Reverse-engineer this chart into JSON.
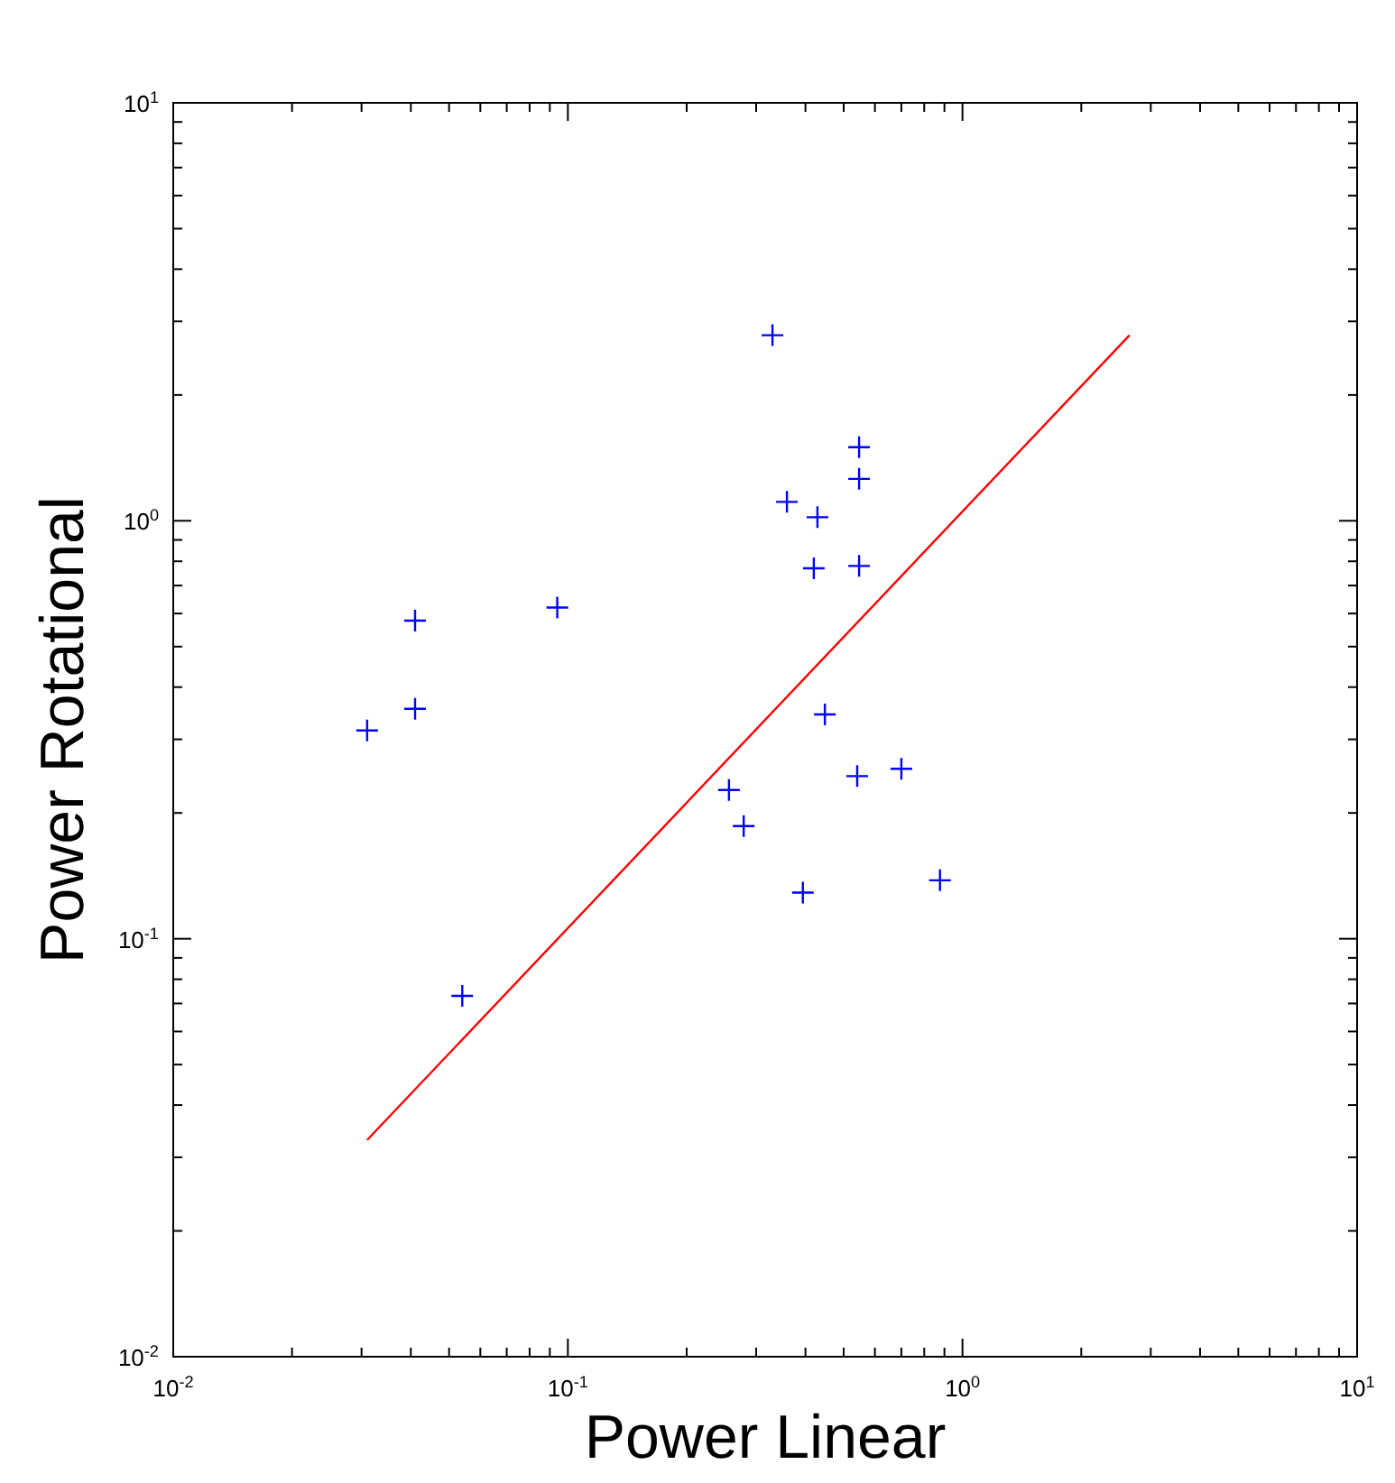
{
  "chart_data": {
    "type": "scatter",
    "xlabel": "Power Linear",
    "ylabel": "Power Rotational",
    "log": "xy",
    "marker": "cross",
    "grid": false,
    "xlim": [
      0.01,
      10
    ],
    "ylim": [
      0.01,
      10
    ],
    "xticks": [
      {
        "value": 0.01,
        "label": "10$^{-2}$"
      },
      {
        "value": 0.02,
        "label": null
      },
      {
        "value": 0.03,
        "label": null
      },
      {
        "value": 0.04,
        "label": null
      },
      {
        "value": 0.05,
        "label": null
      },
      {
        "value": 0.06,
        "label": null
      },
      {
        "value": 0.07,
        "label": null
      },
      {
        "value": 0.08,
        "label": null
      },
      {
        "value": 0.09,
        "label": null
      },
      {
        "value": 0.1,
        "label": "10$^{-1}$"
      },
      {
        "value": 0.2,
        "label": null
      },
      {
        "value": 0.3,
        "label": null
      },
      {
        "value": 0.4,
        "label": null
      },
      {
        "value": 0.5,
        "label": null
      },
      {
        "value": 0.6,
        "label": null
      },
      {
        "value": 0.7,
        "label": null
      },
      {
        "value": 0.8,
        "label": null
      },
      {
        "value": 0.9,
        "label": null
      },
      {
        "value": 1,
        "label": "10$^{0}$"
      },
      {
        "value": 2,
        "label": null
      },
      {
        "value": 3,
        "label": null
      },
      {
        "value": 4,
        "label": null
      },
      {
        "value": 5,
        "label": null
      },
      {
        "value": 6,
        "label": null
      },
      {
        "value": 7,
        "label": null
      },
      {
        "value": 8,
        "label": null
      },
      {
        "value": 9,
        "label": null
      },
      {
        "value": 10,
        "label": "10$^{1}$"
      }
    ],
    "yticks": [
      {
        "value": 0.01,
        "label": "10$^{-2}$"
      },
      {
        "value": 0.02,
        "label": null
      },
      {
        "value": 0.03,
        "label": null
      },
      {
        "value": 0.04,
        "label": null
      },
      {
        "value": 0.05,
        "label": null
      },
      {
        "value": 0.06,
        "label": null
      },
      {
        "value": 0.07,
        "label": null
      },
      {
        "value": 0.08,
        "label": null
      },
      {
        "value": 0.09,
        "label": null
      },
      {
        "value": 0.1,
        "label": "10$^{-1}$"
      },
      {
        "value": 0.2,
        "label": null
      },
      {
        "value": 0.3,
        "label": null
      },
      {
        "value": 0.4,
        "label": null
      },
      {
        "value": 0.5,
        "label": null
      },
      {
        "value": 0.6,
        "label": null
      },
      {
        "value": 0.7,
        "label": null
      },
      {
        "value": 0.8,
        "label": null
      },
      {
        "value": 0.9,
        "label": null
      },
      {
        "value": 1,
        "label": "10$^{0}$"
      },
      {
        "value": 2,
        "label": null
      },
      {
        "value": 3,
        "label": null
      },
      {
        "value": 4,
        "label": null
      },
      {
        "value": 5,
        "label": null
      },
      {
        "value": 6,
        "label": null
      },
      {
        "value": 7,
        "label": null
      },
      {
        "value": 8,
        "label": null
      },
      {
        "value": 9,
        "label": null
      },
      {
        "value": 10,
        "label": "10$^{1}$"
      }
    ],
    "series": [
      {
        "color": "#0000ff",
        "x": [
          0.031,
          0.054,
          0.041,
          0.041,
          0.094,
          0.33,
          0.547,
          0.547,
          0.359,
          0.429,
          0.42,
          0.547,
          0.448,
          0.256,
          0.279,
          0.541,
          0.7,
          0.394,
          0.877
        ],
        "values": [
          0.315,
          0.073,
          0.577,
          0.355,
          0.62,
          2.78,
          1.5,
          1.26,
          1.11,
          1.02,
          0.77,
          0.78,
          0.344,
          0.227,
          0.186,
          0.245,
          0.255,
          0.129,
          0.138
        ]
      },
      {
        "type": "line",
        "color": "#ff0000",
        "marker": "none",
        "x": [
          0.031,
          2.65
        ],
        "values": [
          0.033,
          2.78
        ]
      }
    ]
  }
}
